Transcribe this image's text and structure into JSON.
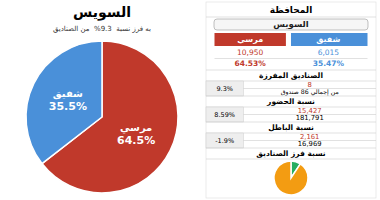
{
  "chart_data": [
    {
      "type": "pie",
      "title": "السويس",
      "subtitle": "به فرز نسبة  9.3%  من الصناديق",
      "categories": [
        "مرسي",
        "شفيق"
      ],
      "values": [
        64.5,
        35.5
      ],
      "value_labels": [
        "64.5%",
        "35.5%"
      ],
      "colors": [
        "#c0392b",
        "#4a90d9"
      ],
      "data_labels": true
    },
    {
      "type": "table",
      "title": "المحافظة",
      "subtitle": "السويس",
      "series": [
        {
          "name": "مرسي",
          "color": "#c0392b",
          "values": [
            10950,
            64.53
          ],
          "value_labels": [
            "10,950",
            "64.53%"
          ]
        },
        {
          "name": "شفيق",
          "color": "#4a90d9",
          "values": [
            6015,
            35.47
          ],
          "value_labels": [
            "6,015",
            "35.47%"
          ]
        }
      ],
      "sections": [
        {
          "name": "الصناديق المفرزة",
          "values": [
            9.3,
            8
          ],
          "value_labels": [
            "9.3%",
            "8"
          ],
          "note": "من إجمالي 86 صندوق"
        },
        {
          "name": "نسبة الحضور",
          "values": [
            8.59,
            15427,
            181791
          ],
          "value_labels": [
            "8.59%",
            "15,427",
            "181,791"
          ]
        },
        {
          "name": "نسبة الباطل",
          "values": [
            -1.9,
            2161,
            16969
          ],
          "value_labels": [
            "-1.9%",
            "2,161",
            "16,969"
          ]
        }
      ]
    },
    {
      "type": "pie",
      "title": "نسبة فرز الصناديق",
      "values": [
        9.3,
        90.7
      ],
      "colors": [
        "#27ae60",
        "#f39c12"
      ]
    }
  ]
}
